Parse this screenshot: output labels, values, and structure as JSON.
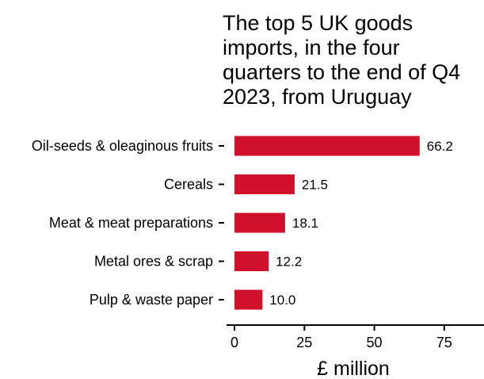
{
  "chart_data": {
    "type": "bar",
    "orientation": "horizontal",
    "title": "The top 5 UK goods imports, in the four quarters to the end of Q4 2023, from Uruguay",
    "categories": [
      "Oil-seeds & oleaginous fruits",
      "Cereals",
      "Meat & meat preparations",
      "Metal ores & scrap",
      "Pulp & waste paper"
    ],
    "values": [
      66.2,
      21.5,
      18.1,
      12.2,
      10.0
    ],
    "value_labels": [
      "66.2",
      "21.5",
      "18.1",
      "12.2",
      "10.0"
    ],
    "xlabel": "£ million",
    "xlim": [
      0,
      90
    ],
    "xticks": [
      0,
      25,
      50,
      75
    ],
    "xtick_labels": [
      "0",
      "25",
      "50",
      "75"
    ],
    "grid": false,
    "legend": "none",
    "bar_color": "#d0112b"
  }
}
